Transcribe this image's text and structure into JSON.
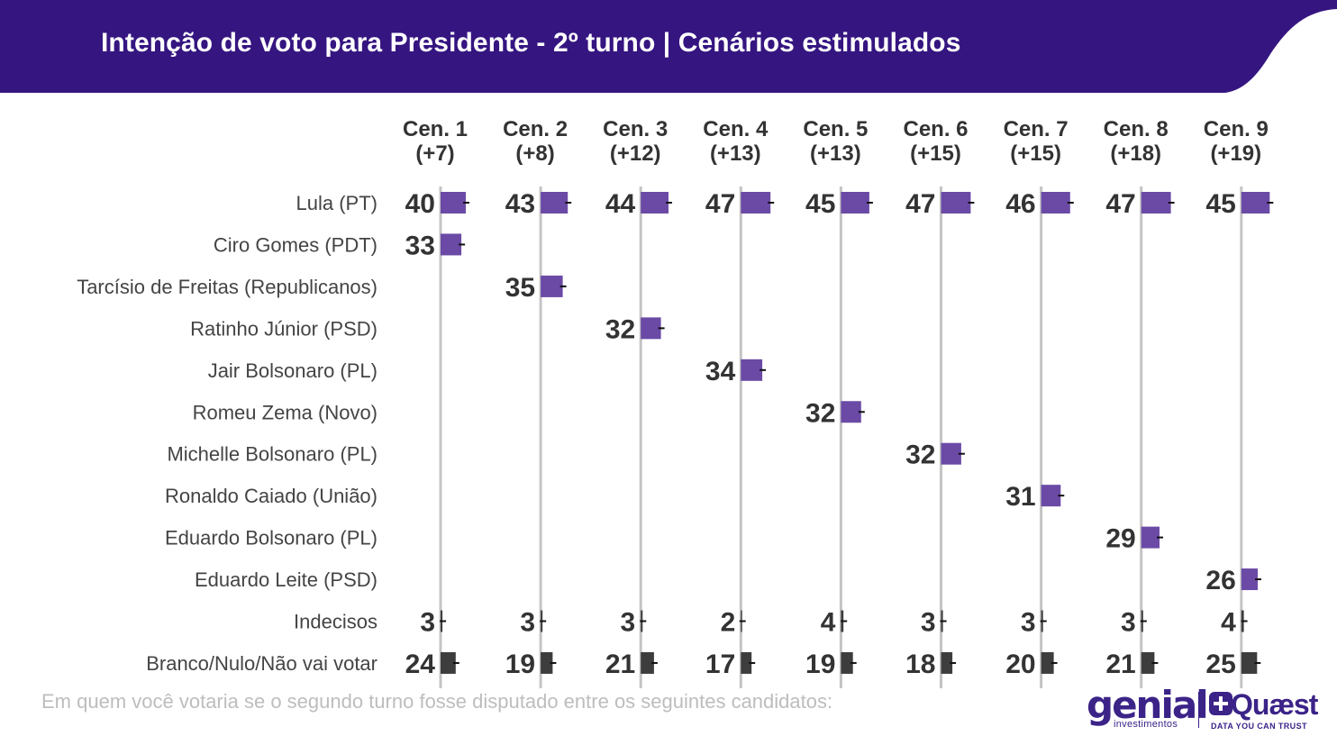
{
  "header": {
    "title": "Intenção de voto para Presidente - 2º turno | Cenários estimulados"
  },
  "colors": {
    "header_bg": "#351580",
    "candidate_bar": "#6b4aa6",
    "other_bar": "#3d3d3d",
    "gridline": "#c4c4c4",
    "value_text": "#333333"
  },
  "chart_data": {
    "type": "bar",
    "orientation": "horizontal",
    "grid": true,
    "scenarios": [
      "Cen. 1",
      "Cen. 2",
      "Cen. 3",
      "Cen. 4",
      "Cen. 5",
      "Cen. 6",
      "Cen. 7",
      "Cen. 8",
      "Cen. 9"
    ],
    "differences": [
      "(+7)",
      "(+8)",
      "(+12)",
      "(+13)",
      "(+13)",
      "(+15)",
      "(+15)",
      "(+18)",
      "(+19)"
    ],
    "rows": [
      {
        "label": "Lula (PT)",
        "kind": "candidate",
        "values": [
          40,
          43,
          44,
          47,
          45,
          47,
          46,
          47,
          45
        ]
      },
      {
        "label": "Ciro Gomes (PDT)",
        "kind": "candidate",
        "values": [
          33,
          null,
          null,
          null,
          null,
          null,
          null,
          null,
          null
        ]
      },
      {
        "label": "Tarcísio de Freitas (Republicanos)",
        "kind": "candidate",
        "values": [
          null,
          35,
          null,
          null,
          null,
          null,
          null,
          null,
          null
        ]
      },
      {
        "label": "Ratinho Júnior (PSD)",
        "kind": "candidate",
        "values": [
          null,
          null,
          32,
          null,
          null,
          null,
          null,
          null,
          null
        ]
      },
      {
        "label": "Jair Bolsonaro (PL)",
        "kind": "candidate",
        "values": [
          null,
          null,
          null,
          34,
          null,
          null,
          null,
          null,
          null
        ]
      },
      {
        "label": "Romeu Zema (Novo)",
        "kind": "candidate",
        "values": [
          null,
          null,
          null,
          null,
          32,
          null,
          null,
          null,
          null
        ]
      },
      {
        "label": "Michelle Bolsonaro (PL)",
        "kind": "candidate",
        "values": [
          null,
          null,
          null,
          null,
          null,
          32,
          null,
          null,
          null
        ]
      },
      {
        "label": "Ronaldo Caiado (União)",
        "kind": "candidate",
        "values": [
          null,
          null,
          null,
          null,
          null,
          null,
          31,
          null,
          null
        ]
      },
      {
        "label": "Eduardo Bolsonaro (PL)",
        "kind": "candidate",
        "values": [
          null,
          null,
          null,
          null,
          null,
          null,
          null,
          29,
          null
        ]
      },
      {
        "label": "Eduardo Leite (PSD)",
        "kind": "candidate",
        "values": [
          null,
          null,
          null,
          null,
          null,
          null,
          null,
          null,
          26
        ]
      },
      {
        "label": "Indecisos",
        "kind": "other",
        "values": [
          3,
          3,
          3,
          2,
          4,
          3,
          3,
          3,
          4
        ]
      },
      {
        "label": "Branco/Nulo/Não vai votar",
        "kind": "other",
        "values": [
          24,
          19,
          21,
          17,
          19,
          18,
          20,
          21,
          25
        ]
      }
    ]
  },
  "footnote": "Em quem você votaria se o segundo turno fosse disputado entre os seguintes candidatos:",
  "logos": {
    "genial_word": "genial",
    "genial_sub": "investimentos",
    "quaest_word": "Quæst",
    "quaest_sub": "DATA YOU CAN TRUST"
  }
}
